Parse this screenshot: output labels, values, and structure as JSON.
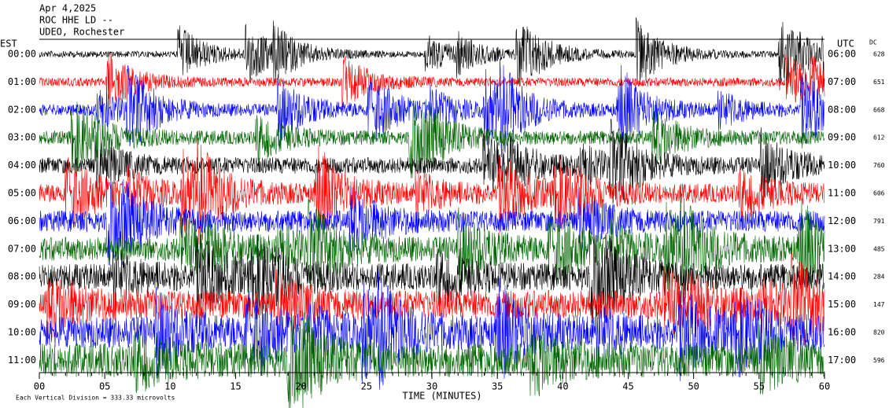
{
  "header": {
    "date": "Apr 4,2025",
    "station": "ROC HHE LD --",
    "network": "UDEO, Rochester"
  },
  "labels": {
    "left_title": "EST",
    "right_title": "UTC",
    "dc_title": "DC"
  },
  "rows": [
    {
      "est": "00:00",
      "utc": "06:00",
      "dc": "628"
    },
    {
      "est": "01:00",
      "utc": "07:00",
      "dc": "651"
    },
    {
      "est": "02:00",
      "utc": "08:00",
      "dc": "668"
    },
    {
      "est": "03:00",
      "utc": "09:00",
      "dc": "612"
    },
    {
      "est": "04:00",
      "utc": "10:00",
      "dc": "760"
    },
    {
      "est": "05:00",
      "utc": "11:00",
      "dc": "606"
    },
    {
      "est": "06:00",
      "utc": "12:00",
      "dc": "791"
    },
    {
      "est": "07:00",
      "utc": "13:00",
      "dc": "485"
    },
    {
      "est": "08:00",
      "utc": "14:00",
      "dc": "284"
    },
    {
      "est": "09:00",
      "utc": "15:00",
      "dc": "147"
    },
    {
      "est": "10:00",
      "utc": "16:00",
      "dc": "820"
    },
    {
      "est": "11:00",
      "utc": "17:00",
      "dc": "596"
    }
  ],
  "x_axis": {
    "title": "TIME (MINUTES)",
    "ticks": [
      "00",
      "05",
      "10",
      "15",
      "20",
      "25",
      "30",
      "35",
      "40",
      "45",
      "50",
      "55",
      "60"
    ]
  },
  "note": "Each Vertical Division = 333.33 microvolts"
}
